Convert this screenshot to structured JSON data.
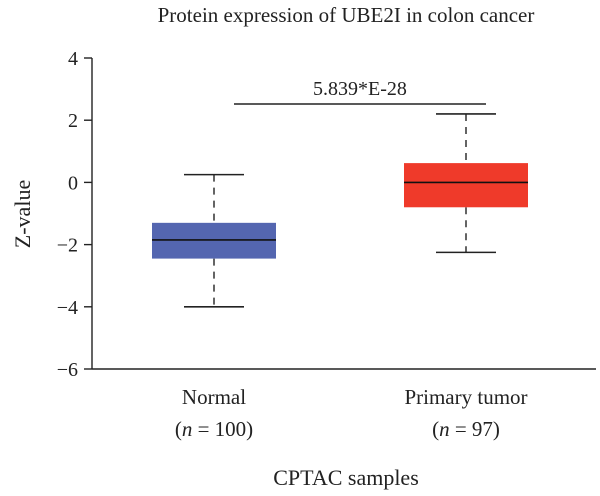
{
  "chart_data": {
    "type": "box",
    "title": "Protein expression of UBE2I in colon cancer",
    "xlabel": "CPTAC samples",
    "ylabel": "Z-value",
    "ylim": [
      -6,
      4
    ],
    "yticks": [
      4,
      2,
      0,
      -2,
      -4,
      -6
    ],
    "ytick_labels": [
      "4",
      "2",
      "0",
      "−2",
      "−4",
      "−6"
    ],
    "grid": false,
    "annotation": "5.839*E-28",
    "groups": [
      {
        "name": "Normal",
        "n_label": "(n = 100)",
        "n_prefix": "(",
        "n_symbol": "n",
        "n_suffix": " = 100)",
        "color": "#5466b0",
        "min": -4.0,
        "q1": -2.45,
        "median": -1.85,
        "q3": -1.3,
        "max": 0.25
      },
      {
        "name": "Primary tumor",
        "n_label": "(n = 97)",
        "n_prefix": "(",
        "n_symbol": "n",
        "n_suffix": " = 97)",
        "color": "#ef3a2a",
        "min": -2.25,
        "q1": -0.8,
        "median": 0.0,
        "q3": 0.62,
        "max": 2.2
      }
    ]
  }
}
